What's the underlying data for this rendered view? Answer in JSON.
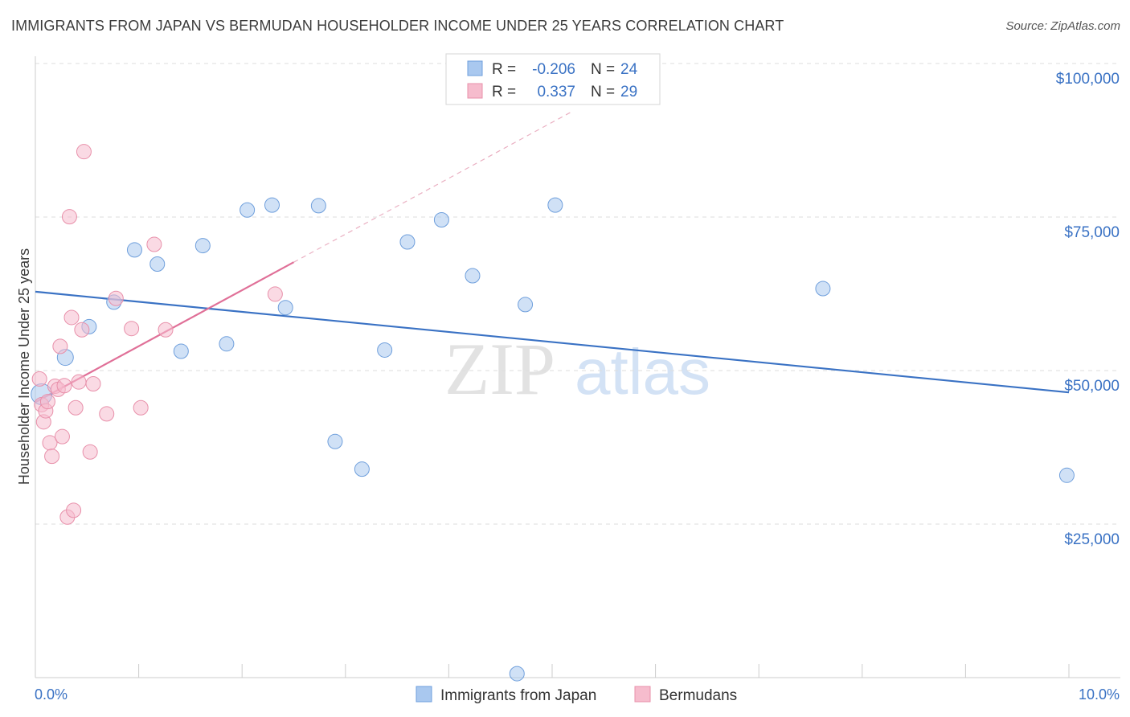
{
  "title": "IMMIGRANTS FROM JAPAN VS BERMUDAN HOUSEHOLDER INCOME UNDER 25 YEARS CORRELATION CHART",
  "source": "Source: ZipAtlas.com",
  "watermark": {
    "zip": "ZIP",
    "atlas": "atlas"
  },
  "colors": {
    "blue": "#a9c8ef",
    "blue_stroke": "#6f9fdc",
    "blue_line": "#3a72c4",
    "pink": "#f6bccd",
    "pink_stroke": "#e890aa",
    "pink_line": "#e07098",
    "axis_label": "#3a72c4",
    "grid": "#dddddd"
  },
  "legend": {
    "series1": {
      "r_label": "R =",
      "r_value": "-0.206",
      "n_label": "N =",
      "n_value": "24"
    },
    "series2": {
      "r_label": "R =",
      "r_value": "0.337",
      "n_label": "N =",
      "n_value": "29"
    }
  },
  "chart_data": {
    "type": "scatter",
    "title": "IMMIGRANTS FROM JAPAN VS BERMUDAN HOUSEHOLDER INCOME UNDER 25 YEARS CORRELATION CHART",
    "xlabel": "",
    "ylabel": "Householder Income Under 25 years",
    "xlim": [
      0,
      10
    ],
    "ylim": [
      2000,
      105000
    ],
    "x_tick_labels": [
      "0.0%",
      "10.0%"
    ],
    "y_ticks": [
      {
        "value": 100000,
        "label": "$100,000"
      },
      {
        "value": 75000,
        "label": "$75,000"
      },
      {
        "value": 50000,
        "label": "$50,000"
      },
      {
        "value": 25000,
        "label": "$25,000"
      }
    ],
    "series": [
      {
        "name": "Immigrants from Japan",
        "color": "blue",
        "points": [
          [
            0.06,
            48500,
            13
          ],
          [
            0.29,
            54500,
            10
          ],
          [
            0.52,
            59500,
            9
          ],
          [
            0.76,
            63500,
            9
          ],
          [
            0.96,
            72000,
            9
          ],
          [
            1.18,
            69700,
            9
          ],
          [
            1.41,
            55500,
            9
          ],
          [
            1.62,
            72700,
            9
          ],
          [
            1.85,
            56700,
            9
          ],
          [
            2.05,
            78500,
            9
          ],
          [
            2.29,
            79300,
            9
          ],
          [
            2.42,
            62600,
            9
          ],
          [
            2.74,
            79200,
            9
          ],
          [
            2.9,
            40800,
            9
          ],
          [
            3.16,
            36300,
            9
          ],
          [
            3.38,
            55700,
            9
          ],
          [
            3.6,
            73300,
            9
          ],
          [
            3.93,
            76900,
            9
          ],
          [
            4.23,
            67800,
            9
          ],
          [
            4.66,
            3000,
            9
          ],
          [
            4.74,
            63100,
            9
          ],
          [
            5.03,
            79300,
            9
          ],
          [
            7.62,
            65700,
            9
          ],
          [
            9.98,
            35300,
            9
          ]
        ],
        "trend": {
          "x": [
            0,
            10
          ],
          "y": [
            65200,
            48800
          ],
          "dashed": false
        }
      },
      {
        "name": "Bermudans",
        "color": "pink",
        "points": [
          [
            0.04,
            51000,
            9
          ],
          [
            0.06,
            46800,
            9
          ],
          [
            0.08,
            44000,
            9
          ],
          [
            0.1,
            45800,
            9
          ],
          [
            0.12,
            47300,
            9
          ],
          [
            0.14,
            40600,
            9
          ],
          [
            0.16,
            38400,
            9
          ],
          [
            0.19,
            49800,
            9
          ],
          [
            0.22,
            49300,
            9
          ],
          [
            0.24,
            56300,
            9
          ],
          [
            0.26,
            41600,
            9
          ],
          [
            0.28,
            49900,
            9
          ],
          [
            0.31,
            28500,
            9
          ],
          [
            0.33,
            77400,
            9
          ],
          [
            0.35,
            61000,
            9
          ],
          [
            0.37,
            29600,
            9
          ],
          [
            0.39,
            46300,
            9
          ],
          [
            0.42,
            50500,
            9
          ],
          [
            0.45,
            59000,
            9
          ],
          [
            0.47,
            88000,
            9
          ],
          [
            0.53,
            39100,
            9
          ],
          [
            0.56,
            50200,
            9
          ],
          [
            0.69,
            45300,
            9
          ],
          [
            0.78,
            64100,
            9
          ],
          [
            0.93,
            59200,
            9
          ],
          [
            1.02,
            46300,
            9
          ],
          [
            1.15,
            72900,
            9
          ],
          [
            1.26,
            59000,
            9
          ],
          [
            2.32,
            64800,
            9
          ]
        ],
        "trend": {
          "x": [
            0,
            2.5
          ],
          "y": [
            47200,
            70000
          ],
          "dashed": false
        },
        "trend_extension": {
          "x": [
            2.5,
            5.2
          ],
          "y": [
            70000,
            94600
          ],
          "dashed": true
        }
      }
    ]
  }
}
